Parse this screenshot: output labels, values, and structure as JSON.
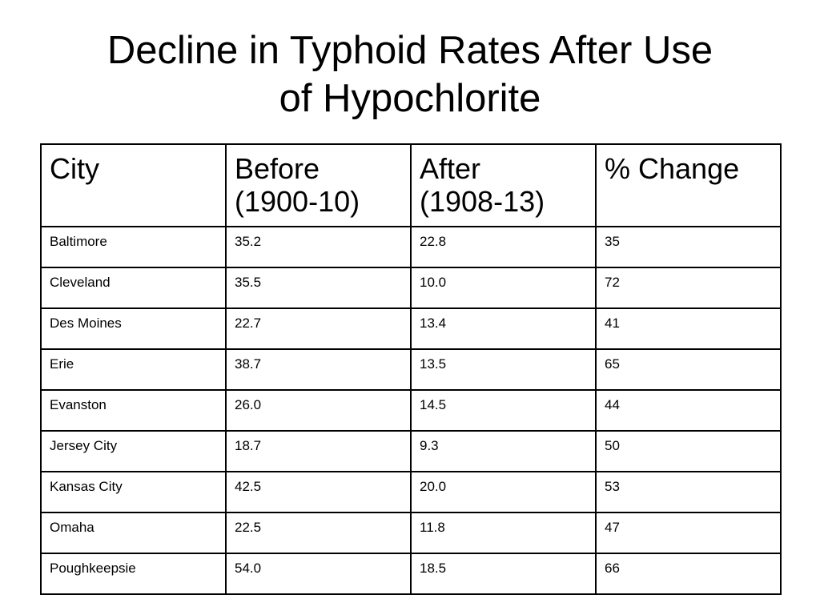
{
  "slide": {
    "title_line1": "Decline in Typhoid Rates After Use",
    "title_line2": "of Hypochlorite"
  },
  "table": {
    "headers": [
      {
        "line1": "City",
        "line2": ""
      },
      {
        "line1": "Before",
        "line2": "(1900-10)"
      },
      {
        "line1": "After",
        "line2": "(1908-13)"
      },
      {
        "line1": "% Change",
        "line2": ""
      }
    ],
    "rows": [
      [
        "Baltimore",
        "35.2",
        "22.8",
        "35"
      ],
      [
        "Cleveland",
        "35.5",
        "10.0",
        "72"
      ],
      [
        "Des Moines",
        "22.7",
        "13.4",
        "41"
      ],
      [
        "Erie",
        "38.7",
        "13.5",
        "65"
      ],
      [
        "Evanston",
        "26.0",
        "14.5",
        "44"
      ],
      [
        "Jersey City",
        "18.7",
        "9.3",
        "50"
      ],
      [
        "Kansas City",
        "42.5",
        "20.0",
        "53"
      ],
      [
        "Omaha",
        "22.5",
        "11.8",
        "47"
      ],
      [
        "Poughkeepsie",
        "54.0",
        "18.5",
        "66"
      ]
    ]
  }
}
